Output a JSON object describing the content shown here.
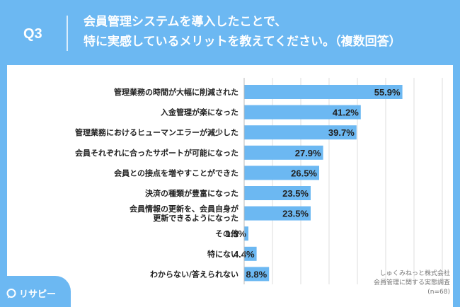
{
  "header": {
    "question_number": "Q3",
    "title_line1": "会員管理システムを導入したことで、",
    "title_line2": "特に実感しているメリットを教えてください。（複数回答）"
  },
  "logo": {
    "text": "リサピー"
  },
  "source": {
    "line1": "しゅくみねっと株式会社",
    "line2": "会員管理に関する実態調査",
    "line3": "(n=68)"
  },
  "colors": {
    "bar": "#6cb8f2",
    "header_bg": "#6cb8f2",
    "grid": "#dddddd",
    "label": "#222222"
  },
  "chart_data": {
    "type": "bar",
    "orientation": "horizontal",
    "categories": [
      [
        "管理業務の時間が大幅に削減された"
      ],
      [
        "入金管理が楽になった"
      ],
      [
        "管理業務におけるヒューマンエラーが減少した"
      ],
      [
        "会員それぞれに合ったサポートが可能になった"
      ],
      [
        "会員との接点を増やすことができた"
      ],
      [
        "決済の種類が豊富になった"
      ],
      [
        "会員情報の更新を、会員自身が",
        "更新できるようになった"
      ],
      [
        "その他"
      ],
      [
        "特にない"
      ],
      [
        "わからない/答えられない"
      ]
    ],
    "values": [
      55.9,
      41.2,
      39.7,
      27.9,
      26.5,
      23.5,
      23.5,
      1.5,
      4.4,
      8.8
    ],
    "value_labels": [
      "55.9%",
      "41.2%",
      "39.7%",
      "27.9%",
      "26.5%",
      "23.5%",
      "23.5%",
      "1.5%",
      "4.4%",
      "8.8%"
    ],
    "xlim": [
      0,
      70
    ],
    "grid": true
  }
}
